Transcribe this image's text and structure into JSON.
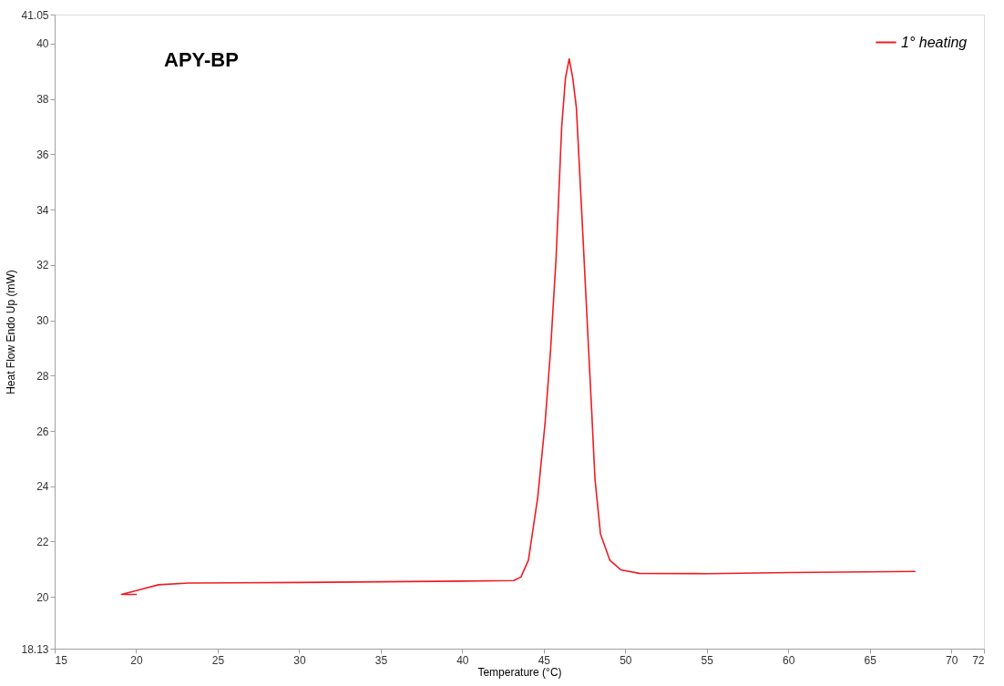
{
  "chart_data": {
    "type": "line",
    "title": "APY-BP",
    "xlabel": "Temperature (°C)",
    "ylabel": "Heat Flow Endo Up (mW)",
    "xlim": [
      15,
      72
    ],
    "xticks": [
      15,
      20,
      25,
      30,
      35,
      40,
      45,
      50,
      55,
      60,
      65,
      70,
      72
    ],
    "ylim": [
      18.13,
      41.05
    ],
    "yticks": [
      18.13,
      20,
      22,
      24,
      26,
      28,
      30,
      32,
      34,
      36,
      38,
      40,
      41.05
    ],
    "grid": false,
    "legend": "top right",
    "marker": "none",
    "line_style": "solid",
    "series": [
      {
        "name": "1° heating",
        "color": "#ee1c25",
        "x": [
          20.04,
          19.1,
          20.07,
          21.37,
          23.2,
          30,
          40,
          43.16,
          43.6,
          44.06,
          44.63,
          45.08,
          45.42,
          45.76,
          46.1,
          46.33,
          46.56,
          46.78,
          47.0,
          47.35,
          47.69,
          47.92,
          48.14,
          48.48,
          49.05,
          49.72,
          50.87,
          55,
          60,
          67.8
        ],
        "values": [
          20.09,
          20.09,
          20.24,
          20.44,
          20.5,
          20.52,
          20.57,
          20.59,
          20.72,
          21.33,
          23.6,
          26.28,
          28.95,
          32.3,
          37.0,
          38.75,
          39.45,
          38.75,
          37.68,
          33.66,
          29.64,
          26.96,
          24.27,
          22.27,
          21.33,
          20.98,
          20.85,
          20.84,
          20.88,
          20.92
        ]
      }
    ]
  }
}
